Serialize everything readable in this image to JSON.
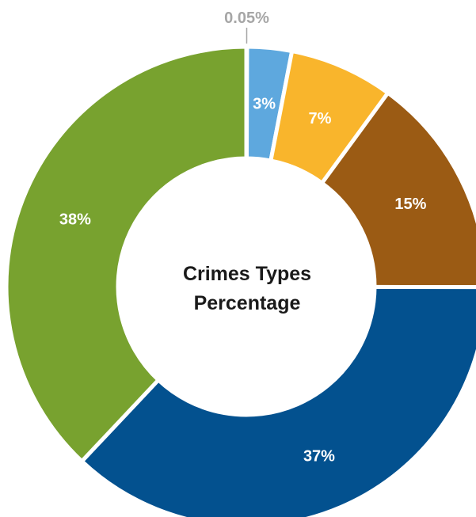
{
  "chart_data": {
    "type": "pie",
    "variant": "donut",
    "title": "Crimes Types Percentage",
    "title_lines": [
      "Crimes Types",
      "Percentage"
    ],
    "slices": [
      {
        "label": "0.05%",
        "value": 0.05,
        "color": "#c4d62b",
        "label_position": "outside"
      },
      {
        "label": "3%",
        "value": 3,
        "color": "#5ea8de",
        "label_position": "inside"
      },
      {
        "label": "7%",
        "value": 7,
        "color": "#f9b52c",
        "label_position": "inside"
      },
      {
        "label": "15%",
        "value": 15,
        "color": "#9b5b14",
        "label_position": "inside"
      },
      {
        "label": "37%",
        "value": 37,
        "color": "#03518f",
        "label_position": "inside"
      },
      {
        "label": "38%",
        "value": 38,
        "color": "#78a22f",
        "label_position": "inside"
      }
    ],
    "start": "top",
    "direction": "clockwise"
  }
}
